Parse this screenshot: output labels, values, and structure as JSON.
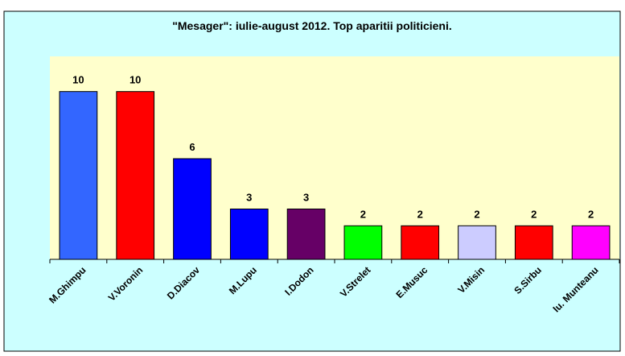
{
  "chart_data": {
    "type": "bar",
    "title": "\"Mesager\": iulie-august 2012. Top aparitii politicieni.",
    "categories": [
      "M.Ghimpu",
      "V.Voronin",
      "D.Diacov",
      "M.Lupu",
      "I.Dodon",
      "V.Strelet",
      "E.Musuc",
      "V.Misin",
      "S.Sirbu",
      "Iu. Munteanu"
    ],
    "values": [
      10,
      10,
      6,
      3,
      3,
      2,
      2,
      2,
      2,
      2
    ],
    "colors": [
      "#3366ff",
      "#ff0000",
      "#0000ff",
      "#0000ff",
      "#660066",
      "#00ff00",
      "#ff0000",
      "#ccccff",
      "#ff0000",
      "#ff00ff"
    ],
    "ylim": [
      0,
      12
    ]
  }
}
